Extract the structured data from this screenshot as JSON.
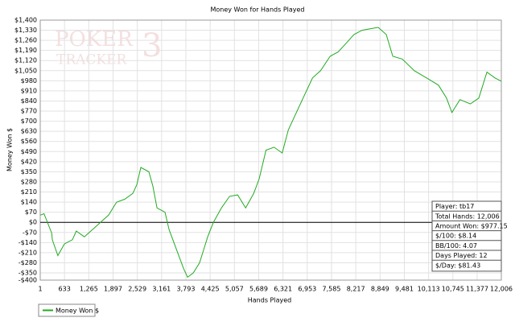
{
  "chart_data": {
    "type": "line",
    "title": "Money Won for Hands Played",
    "x_label": "Hands Played",
    "y_label": "Money Won $",
    "logo": [
      "POKER",
      "TRACKER",
      "3"
    ],
    "x": [
      1,
      100,
      300,
      315,
      460,
      630,
      840,
      940,
      1150,
      1360,
      1570,
      1780,
      1990,
      2200,
      2410,
      2515,
      2620,
      2830,
      2935,
      3040,
      3250,
      3355,
      3565,
      3733,
      3838,
      3985,
      4150,
      4360,
      4510,
      4720,
      4930,
      5140,
      5350,
      5560,
      5700,
      5880,
      6090,
      6300,
      6460,
      6670,
      6880,
      7090,
      7300,
      7550,
      7760,
      8000,
      8170,
      8380,
      8590,
      8800,
      9010,
      9180,
      9430,
      9740,
      10060,
      10370,
      10580,
      10720,
      10930,
      11200,
      11420,
      11630,
      11840,
      12006
    ],
    "series": [
      {
        "name": "Money Won $",
        "color": "#22aa22",
        "values": [
          50,
          60,
          -75,
          -120,
          -230,
          -150,
          -120,
          -60,
          -100,
          -50,
          0,
          50,
          140,
          160,
          200,
          260,
          380,
          350,
          250,
          100,
          70,
          -50,
          -200,
          -320,
          -380,
          -350,
          -280,
          -100,
          0,
          100,
          180,
          190,
          100,
          200,
          300,
          500,
          520,
          480,
          640,
          760,
          880,
          1000,
          1050,
          1150,
          1180,
          1250,
          1300,
          1330,
          1340,
          1350,
          1300,
          1150,
          1130,
          1050,
          1000,
          950,
          860,
          760,
          850,
          820,
          860,
          1040,
          1000,
          977.15
        ]
      }
    ],
    "xlim": [
      1,
      12006
    ],
    "xticks": [
      1,
      633,
      {
        "value": 1265,
        "label": "1,265"
      },
      {
        "value": 1897,
        "label": "1,897"
      },
      {
        "value": 2529,
        "label": "2,529"
      },
      {
        "value": 3161,
        "label": "3,161"
      },
      {
        "value": 3793,
        "label": "3,793"
      },
      {
        "value": 4425,
        "label": "4,425"
      },
      {
        "value": 5057,
        "label": "5,057"
      },
      {
        "value": 5689,
        "label": "5,689"
      },
      {
        "value": 6321,
        "label": "6,321"
      },
      {
        "value": 6953,
        "label": "6,953"
      },
      {
        "value": 7585,
        "label": "7,585"
      },
      {
        "value": 8217,
        "label": "8,217"
      },
      {
        "value": 8849,
        "label": "8,849"
      },
      {
        "value": 9481,
        "label": "9,481"
      },
      {
        "value": 10113,
        "label": "10,113"
      },
      {
        "value": 10745,
        "label": "10,745"
      },
      {
        "value": 11377,
        "label": "11,377"
      },
      {
        "value": 12006,
        "label": "12,006"
      }
    ],
    "ylim": [
      -400,
      1400
    ],
    "yticks": [
      {
        "value": -400,
        "label": "-$400"
      },
      {
        "value": -350,
        "label": "-$350"
      },
      {
        "value": -280,
        "label": "-$280"
      },
      {
        "value": -210,
        "label": "-$210"
      },
      {
        "value": -140,
        "label": "-$140"
      },
      {
        "value": -70,
        "label": "-$70"
      },
      {
        "value": 0,
        "label": "$0"
      },
      {
        "value": 70,
        "label": "$70"
      },
      {
        "value": 140,
        "label": "$140"
      },
      {
        "value": 210,
        "label": "$210"
      },
      {
        "value": 280,
        "label": "$280"
      },
      {
        "value": 350,
        "label": "$350"
      },
      {
        "value": 420,
        "label": "$420"
      },
      {
        "value": 490,
        "label": "$490"
      },
      {
        "value": 560,
        "label": "$560"
      },
      {
        "value": 630,
        "label": "$630"
      },
      {
        "value": 700,
        "label": "$700"
      },
      {
        "value": 770,
        "label": "$770"
      },
      {
        "value": 840,
        "label": "$840"
      },
      {
        "value": 910,
        "label": "$910"
      },
      {
        "value": 980,
        "label": "$980"
      },
      {
        "value": 1050,
        "label": "$1,050"
      },
      {
        "value": 1120,
        "label": "$1,120"
      },
      {
        "value": 1190,
        "label": "$1,190"
      },
      {
        "value": 1260,
        "label": "$1,260"
      },
      {
        "value": 1330,
        "label": "$1,330"
      },
      {
        "value": 1400,
        "label": "$1,400"
      }
    ],
    "grid": true,
    "info_box": [
      "Player: tb17",
      "Total Hands: 12,006",
      "Amount Won: $977.15",
      "$/100: $8.14",
      "BB/100: 4.07",
      "Days Played: 12",
      "$/Day: $81.43"
    ]
  }
}
